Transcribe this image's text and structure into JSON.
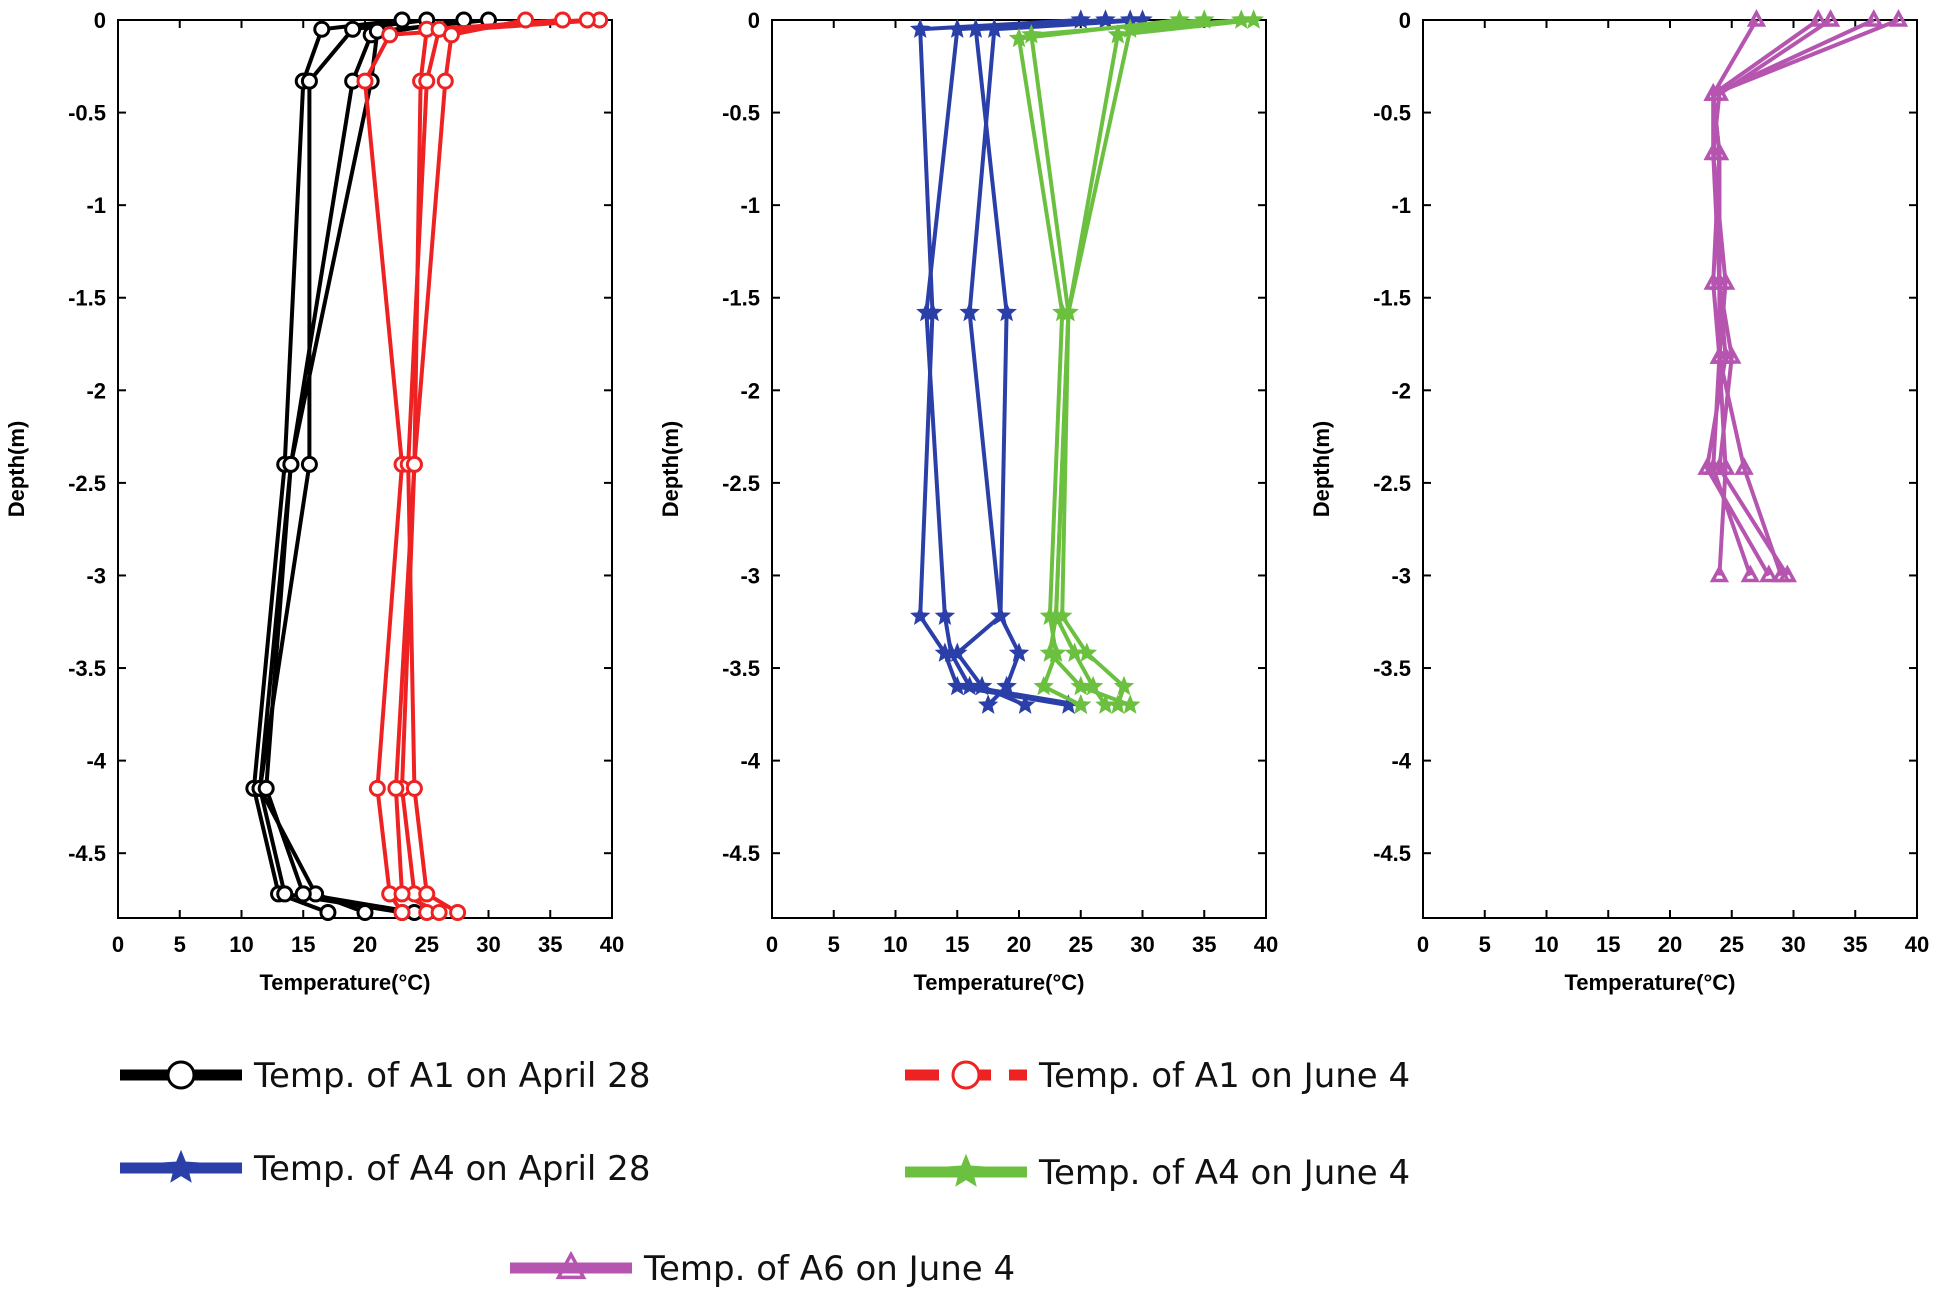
{
  "figure_colors": {
    "a1_april": "#000000",
    "a1_june": "#ee2222",
    "a4_april": "#2b3fa8",
    "a4_june": "#6cc040",
    "a6_june": "#b655b0"
  },
  "chart_data": [
    {
      "type": "line",
      "panel": "left",
      "xlabel": "Temperature(°C)",
      "ylabel": "Depth(m)",
      "xlim": [
        0,
        40
      ],
      "ylim": [
        -4.85,
        0
      ],
      "xticks": [
        "0",
        "5",
        "10",
        "15",
        "20",
        "25",
        "30",
        "35",
        "40"
      ],
      "yticks": [
        "0",
        "-0.5",
        "-1",
        "-1.5",
        "-2",
        "-2.5",
        "-3",
        "-3.5",
        "-4",
        "-4.5"
      ],
      "series": [
        {
          "name": "Temp. of A1 on April 28",
          "color": "#000000",
          "marker": "circle",
          "profiles": [
            {
              "depth": [
                0,
                -0.05,
                -0.33,
                -2.4,
                -4.15,
                -4.72,
                -4.82
              ],
              "temp": [
                23,
                16.5,
                15,
                13.5,
                11,
                13,
                17
              ]
            },
            {
              "depth": [
                0,
                -0.05,
                -0.33,
                -2.4,
                -4.15,
                -4.72,
                -4.82
              ],
              "temp": [
                25,
                19,
                15.5,
                15.5,
                11.5,
                16,
                20
              ]
            },
            {
              "depth": [
                0,
                -0.08,
                -0.33,
                -2.4,
                -4.15,
                -4.72,
                -4.82
              ],
              "temp": [
                28,
                20.5,
                19,
                14,
                11.5,
                13.5,
                23
              ]
            },
            {
              "depth": [
                0,
                -0.06,
                -0.33,
                -2.4,
                -4.15,
                -4.72,
                -4.82
              ],
              "temp": [
                30,
                21,
                20.5,
                14,
                12,
                15,
                24
              ]
            }
          ]
        },
        {
          "name": "Temp. of A1 on June 4",
          "color": "#ee2222",
          "marker": "circle",
          "profiles": [
            {
              "depth": [
                0,
                -0.08,
                -0.33,
                -2.4,
                -4.15,
                -4.72,
                -4.82
              ],
              "temp": [
                39,
                22,
                20,
                23,
                21,
                22,
                23
              ]
            },
            {
              "depth": [
                0,
                -0.05,
                -0.33,
                -2.4,
                -4.15,
                -4.72,
                -4.82
              ],
              "temp": [
                38,
                25,
                24.5,
                24,
                23,
                24,
                25
              ]
            },
            {
              "depth": [
                0,
                -0.05,
                -0.33,
                -2.4,
                -4.15,
                -4.72,
                -4.82
              ],
              "temp": [
                36,
                26,
                25,
                23.5,
                24,
                25,
                27.5
              ]
            },
            {
              "depth": [
                0,
                -0.08,
                -0.33,
                -2.4,
                -4.15,
                -4.72,
                -4.82
              ],
              "temp": [
                33,
                27,
                26.5,
                24,
                22.5,
                23,
                26
              ]
            }
          ]
        }
      ]
    },
    {
      "type": "line",
      "panel": "middle",
      "xlabel": "Temperature(°C)",
      "ylabel": "Depth(m)",
      "xlim": [
        0,
        40
      ],
      "ylim": [
        -4.85,
        0
      ],
      "xticks": [
        "0",
        "5",
        "10",
        "15",
        "20",
        "25",
        "30",
        "35",
        "40"
      ],
      "yticks": [
        "0",
        "-0.5",
        "-1",
        "-1.5",
        "-2",
        "-2.5",
        "-3",
        "-3.5",
        "-4",
        "-4.5"
      ],
      "series": [
        {
          "name": "Temp. of A4 on April 28",
          "color": "#2b3fa8",
          "marker": "star",
          "profiles": [
            {
              "depth": [
                0,
                -0.05,
                -1.58,
                -3.22,
                -3.42,
                -3.6,
                -3.7
              ],
              "temp": [
                25,
                12,
                13,
                12,
                14,
                15,
                24
              ]
            },
            {
              "depth": [
                0,
                -0.05,
                -1.58,
                -3.22,
                -3.42,
                -3.6,
                -3.7
              ],
              "temp": [
                27,
                15,
                12.5,
                14,
                14.5,
                16,
                25
              ]
            },
            {
              "depth": [
                0,
                -0.05,
                -1.58,
                -3.22,
                -3.42,
                -3.6,
                -3.7
              ],
              "temp": [
                29,
                16.5,
                19,
                18.5,
                20,
                19,
                17.5
              ]
            },
            {
              "depth": [
                0,
                -0.05,
                -1.58,
                -3.22,
                -3.42,
                -3.6,
                -3.7
              ],
              "temp": [
                30,
                18,
                16,
                18.5,
                15,
                17,
                20.5
              ]
            }
          ]
        },
        {
          "name": "Temp. of A4 on June 4",
          "color": "#6cc040",
          "marker": "star",
          "profiles": [
            {
              "depth": [
                0,
                -0.08,
                -1.58,
                -3.22,
                -3.42,
                -3.6,
                -3.7
              ],
              "temp": [
                39,
                28,
                24,
                23,
                22.5,
                25,
                29
              ]
            },
            {
              "depth": [
                0,
                -0.05,
                -1.58,
                -3.22,
                -3.42,
                -3.6,
                -3.7
              ],
              "temp": [
                38,
                29,
                24,
                23.5,
                25.5,
                28.5,
                28
              ]
            },
            {
              "depth": [
                0,
                -0.1,
                -1.58,
                -3.22,
                -3.42,
                -3.6,
                -3.7
              ],
              "temp": [
                33,
                20,
                23.5,
                22.5,
                23,
                22,
                25
              ]
            },
            {
              "depth": [
                0,
                -0.08,
                -1.58,
                -3.22,
                -3.42,
                -3.6,
                -3.7
              ],
              "temp": [
                35,
                21,
                24,
                23,
                24.5,
                26,
                27
              ]
            }
          ]
        }
      ]
    },
    {
      "type": "line",
      "panel": "right",
      "xlabel": "Temperature(°C)",
      "ylabel": "Depth(m)",
      "xlim": [
        0,
        40
      ],
      "ylim": [
        -4.85,
        0
      ],
      "xticks": [
        "0",
        "5",
        "10",
        "15",
        "20",
        "25",
        "30",
        "35",
        "40"
      ],
      "yticks": [
        "0",
        "-0.5",
        "-1",
        "-1.5",
        "-2",
        "-2.5",
        "-3",
        "-3.5",
        "-4",
        "-4.5"
      ],
      "series": [
        {
          "name": "Temp. of A6 on June 4",
          "color": "#b655b0",
          "marker": "triangle",
          "profiles": [
            {
              "depth": [
                0,
                -0.4,
                -0.72,
                -1.42,
                -1.82,
                -2.42,
                -3.0
              ],
              "temp": [
                38.5,
                23.5,
                24,
                23.5,
                24,
                24.5,
                24
              ]
            },
            {
              "depth": [
                0,
                -0.4,
                -0.72,
                -1.42,
                -1.82,
                -2.42,
                -3.0
              ],
              "temp": [
                32,
                23.5,
                23.5,
                24,
                24.5,
                23,
                28
              ]
            },
            {
              "depth": [
                0,
                -0.4,
                -0.72,
                -1.42,
                -1.82,
                -2.42,
                -3.0
              ],
              "temp": [
                27,
                23.5,
                24,
                24,
                24,
                26,
                29
              ]
            },
            {
              "depth": [
                0,
                -0.4,
                -0.72,
                -1.42,
                -1.82,
                -2.42,
                -3.0
              ],
              "temp": [
                36.5,
                23.5,
                24,
                24,
                25,
                24,
                29.5
              ]
            },
            {
              "depth": [
                0,
                -0.4,
                -0.72,
                -1.42,
                -1.82,
                -2.42,
                -3.0
              ],
              "temp": [
                33,
                24,
                23.5,
                24.5,
                24,
                23.5,
                26.5
              ]
            }
          ]
        }
      ]
    }
  ],
  "legend": {
    "items": [
      {
        "label": "Temp. of A1 on April 28",
        "color": "#000000",
        "marker": "circle",
        "dashed": false
      },
      {
        "label": "Temp. of A1 on June 4",
        "color": "#ee2222",
        "marker": "circle",
        "dashed": true
      },
      {
        "label": "Temp. of A4 on April 28",
        "color": "#2b3fa8",
        "marker": "star",
        "dashed": false
      },
      {
        "label": "Temp. of A4 on June 4",
        "color": "#6cc040",
        "marker": "star",
        "dashed": false
      },
      {
        "label": "Temp. of A6 on June 4",
        "color": "#b655b0",
        "marker": "triangle",
        "dashed": false
      }
    ]
  }
}
